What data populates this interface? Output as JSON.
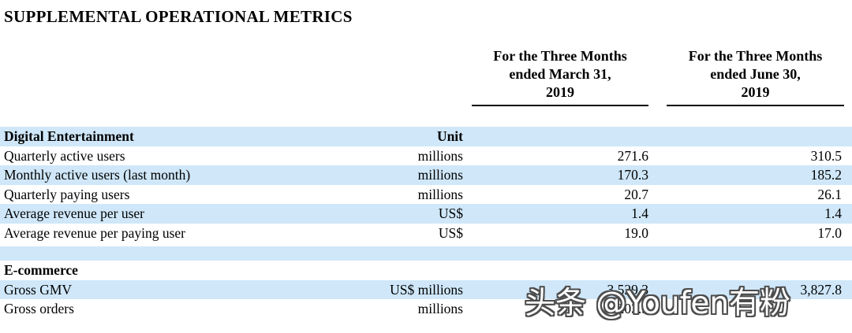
{
  "page": {
    "title": "SUPPLEMENTAL OPERATIONAL METRICS"
  },
  "columns": [
    {
      "line1": "For the Three Months",
      "line2": "ended March 31,",
      "line3": "2019"
    },
    {
      "line1": "For the Three Months",
      "line2": "ended June 30,",
      "line3": "2019"
    }
  ],
  "table": {
    "rows": [
      {
        "label": "Digital Entertainment",
        "unit": "Unit",
        "q1": "",
        "q2": ""
      },
      {
        "label": "Quarterly active users",
        "unit": "millions",
        "q1": "271.6",
        "q2": "310.5"
      },
      {
        "label": "Monthly active users (last month)",
        "unit": "millions",
        "q1": "170.3",
        "q2": "185.2"
      },
      {
        "label": "Quarterly paying users",
        "unit": "millions",
        "q1": "20.7",
        "q2": "26.1"
      },
      {
        "label": "Average revenue per user",
        "unit": "US$",
        "q1": "1.4",
        "q2": "1.4"
      },
      {
        "label": "Average revenue per paying user",
        "unit": "US$",
        "q1": "19.0",
        "q2": "17.0"
      },
      {
        "label": "E-commerce",
        "unit": "",
        "q1": "",
        "q2": ""
      },
      {
        "label": "Gross GMV",
        "unit": "US$ millions",
        "q1": "3,529.3",
        "q2": "3,827.8"
      },
      {
        "label": "Gross orders",
        "unit": "millions",
        "q1": "203.5",
        "q2": ""
      }
    ]
  },
  "watermark": {
    "text": "头条 @Youfen有粉"
  },
  "colors": {
    "row_highlight": "#cfe7f9",
    "text": "#000000"
  }
}
